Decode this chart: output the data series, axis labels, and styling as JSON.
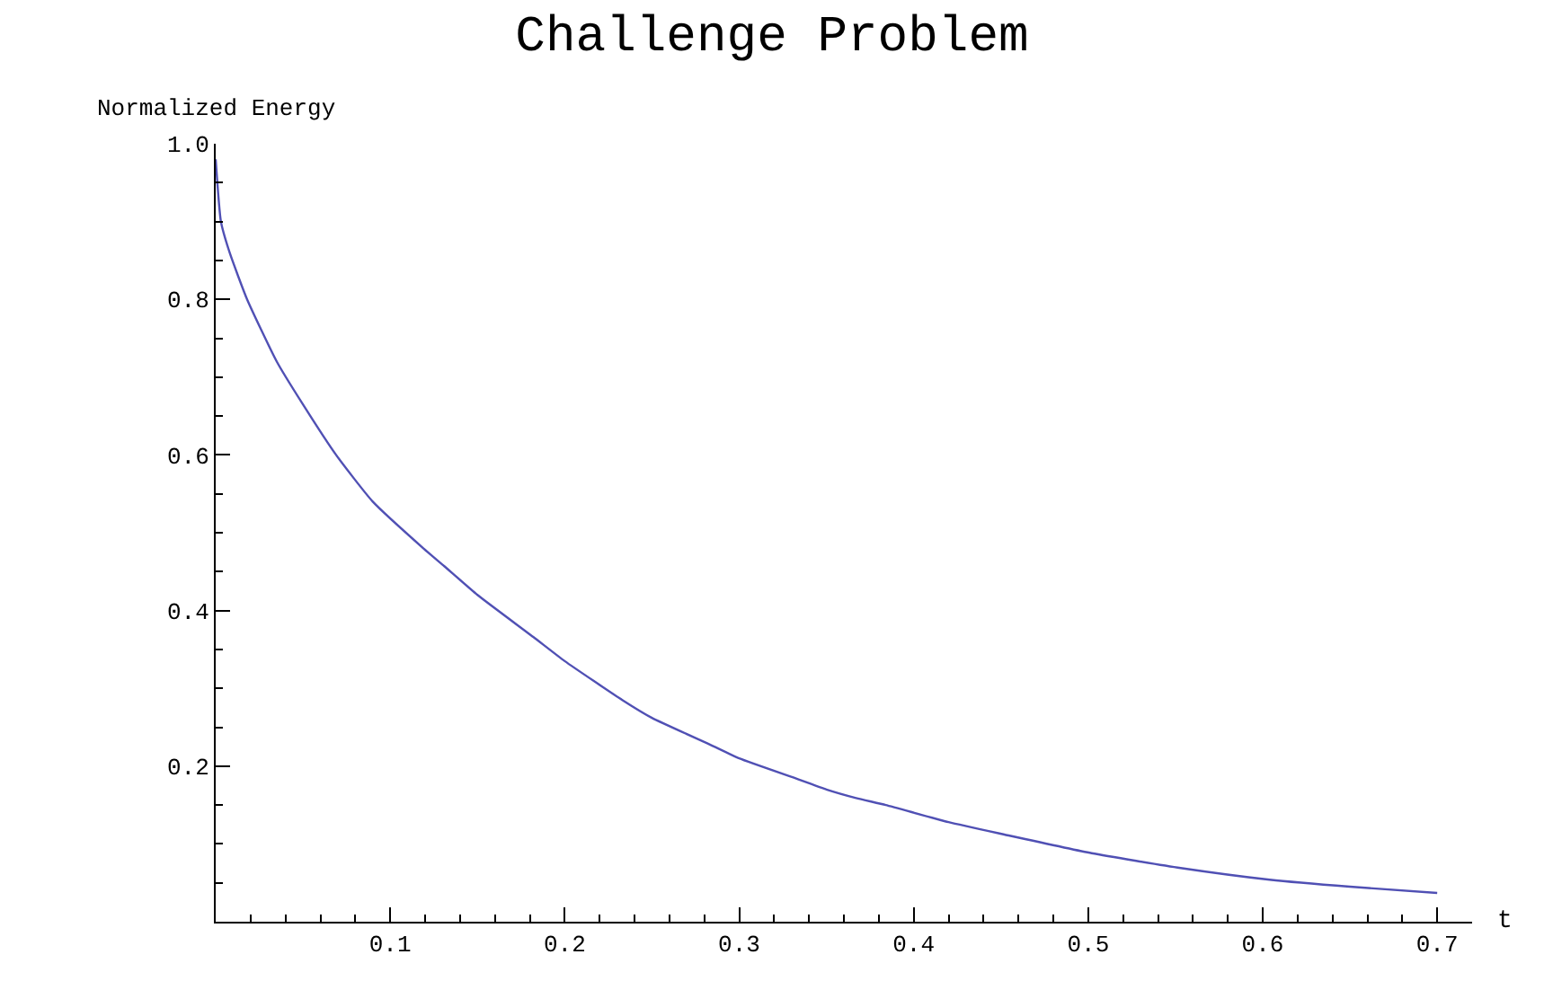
{
  "chart_data": {
    "type": "line",
    "title": "Challenge Problem",
    "xlabel": "t",
    "ylabel": "Normalized Energy",
    "x": [
      0,
      0.003,
      0.008,
      0.018,
      0.035,
      0.05,
      0.069,
      0.09,
      0.119,
      0.131,
      0.15,
      0.182,
      0.2,
      0.233,
      0.25,
      0.283,
      0.3,
      0.334,
      0.35,
      0.367,
      0.384,
      0.42,
      0.452,
      0.502,
      0.553,
      0.604,
      0.65,
      0.7
    ],
    "series": [
      {
        "color": "#5050b4",
        "values": [
          0.98,
          0.9,
          0.86,
          0.8,
          0.72,
          0.665,
          0.6,
          0.54,
          0.48,
          0.457,
          0.42,
          0.366,
          0.335,
          0.285,
          0.262,
          0.228,
          0.21,
          0.183,
          0.17,
          0.159,
          0.15,
          0.128,
          0.112,
          0.088,
          0.069,
          0.054,
          0.045,
          0.037
        ]
      }
    ],
    "xlim": [
      0,
      0.72
    ],
    "ylim": [
      0,
      1.0
    ],
    "xticks": [
      0.1,
      0.2,
      0.3,
      0.4,
      0.5,
      0.6,
      0.7
    ],
    "yticks": [
      0.2,
      0.4,
      0.6,
      0.8,
      {
        "value": 1,
        "label": "1.0"
      }
    ],
    "marker": "none",
    "line_style": "solid"
  }
}
